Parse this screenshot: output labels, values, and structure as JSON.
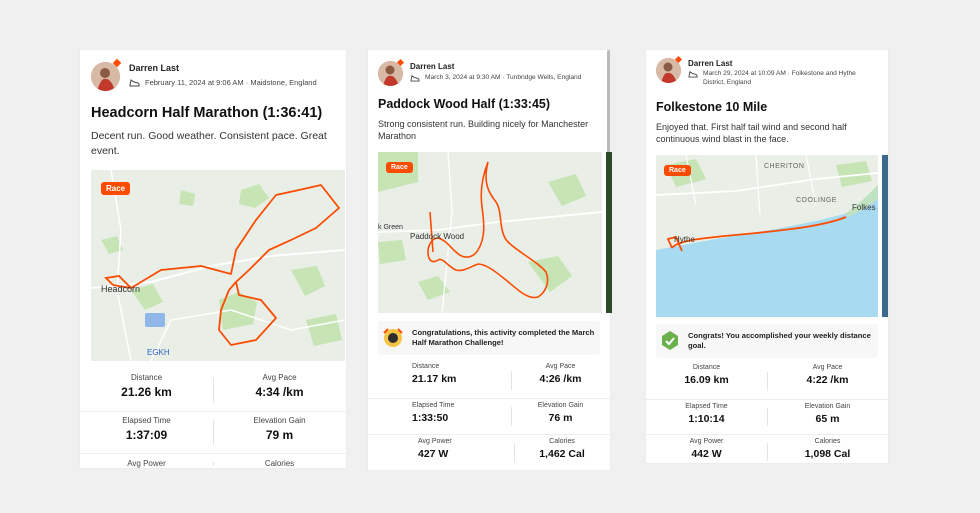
{
  "colors": {
    "brand": "#fc4c02",
    "route": "#fc4c02",
    "water": "#a8daf2",
    "park": "#c6e4b4",
    "land": "#e9eee6"
  },
  "cards": [
    {
      "athlete": "Darren Last",
      "date_location": "February 11, 2024 at 9:06 AM · Maidstone, England",
      "title": "Headcorn Half Marathon (1:36:41)",
      "description": "Decent run. Good weather. Consistent pace. Great event.",
      "map": {
        "tag": "Race",
        "labels": [
          "Headcorn",
          "EGKH"
        ]
      },
      "stats": [
        {
          "label": "Distance",
          "value": "21.26 km"
        },
        {
          "label": "Avg Pace",
          "value": "4:34 /km"
        },
        {
          "label": "Elapsed Time",
          "value": "1:37:09"
        },
        {
          "label": "Elevation Gain",
          "value": "79 m"
        },
        {
          "label": "Avg Power",
          "value": ""
        },
        {
          "label": "Calories",
          "value": ""
        }
      ]
    },
    {
      "athlete": "Darren Last",
      "date_location": "March 3, 2024 at 9:30 AM · Tunbridge Wells, England",
      "title": "Paddock Wood Half (1:33:45)",
      "description": "Strong consistent run. Building nicely for Manchester Marathon",
      "map": {
        "tag": "Race",
        "labels": [
          "Paddock Wood",
          "k Green"
        ]
      },
      "achievement": "Congratulations, this activity completed the March Half Marathon Challenge!",
      "stats": [
        {
          "label": "Distance",
          "value": "21.17 km"
        },
        {
          "label": "Avg Pace",
          "value": "4:26 /km"
        },
        {
          "label": "Elapsed Time",
          "value": "1:33:50"
        },
        {
          "label": "Elevation Gain",
          "value": "76 m"
        },
        {
          "label": "Avg Power",
          "value": "427 W"
        },
        {
          "label": "Calories",
          "value": "1,462 Cal"
        }
      ]
    },
    {
      "athlete": "Darren Last",
      "date_location": "March 29, 2024 at 10:09 AM · Folkestone and Hythe District, England",
      "title": "Folkestone 10 Mile",
      "description": "Enjoyed that. First half tail wind and second half continuous wind blast in the face.",
      "map": {
        "tag": "Race",
        "labels": [
          "CHERITON",
          "COOLINGE",
          "Folkes",
          "Hythe"
        ]
      },
      "achievement": "Congrats! You accomplished your weekly distance goal.",
      "stats": [
        {
          "label": "Distance",
          "value": "16.09 km"
        },
        {
          "label": "Avg Pace",
          "value": "4:22 /km"
        },
        {
          "label": "Elapsed Time",
          "value": "1:10:14"
        },
        {
          "label": "Elevation Gain",
          "value": "65 m"
        },
        {
          "label": "Avg Power",
          "value": "442 W"
        },
        {
          "label": "Calories",
          "value": "1,098 Cal"
        }
      ]
    }
  ]
}
